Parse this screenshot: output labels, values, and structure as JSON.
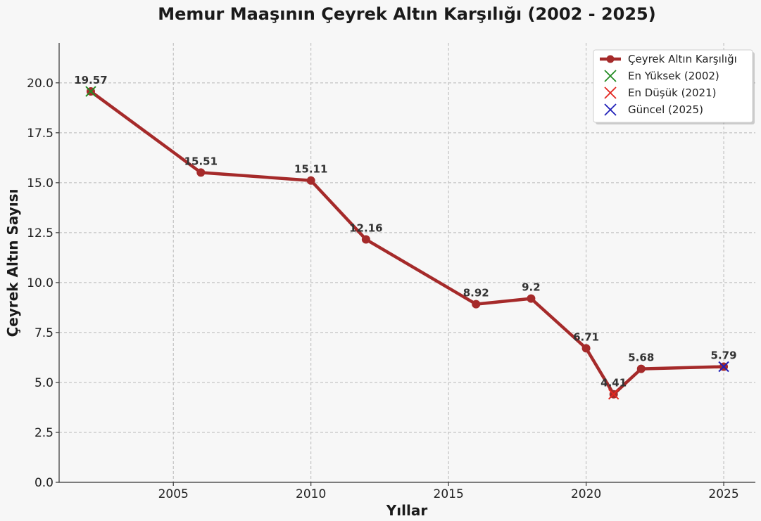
{
  "chart_data": {
    "type": "line",
    "title": "Memur Maaşının Çeyrek Altın Karşılığı (2002 - 2025)",
    "xlabel": "Yıllar",
    "ylabel": "Çeyrek Altın Sayısı",
    "xlim": [
      2000.85,
      2026.15
    ],
    "ylim": [
      0,
      22
    ],
    "xticks": [
      2005,
      2010,
      2015,
      2020,
      2025
    ],
    "yticks": [
      0.0,
      2.5,
      5.0,
      7.5,
      10.0,
      12.5,
      15.0,
      17.5,
      20.0
    ],
    "ytick_labels": [
      "0.0",
      "2.5",
      "5.0",
      "7.5",
      "10.0",
      "12.5",
      "15.0",
      "17.5",
      "20.0"
    ],
    "grid": true,
    "legend_position": "top-right",
    "series": [
      {
        "name": "Çeyrek Altın Karşılığı",
        "color": "#a52a2a",
        "x": [
          2002,
          2006,
          2010,
          2012,
          2016,
          2018,
          2020,
          2021,
          2022,
          2025
        ],
        "y": [
          19.57,
          15.51,
          15.11,
          12.16,
          8.92,
          9.2,
          6.71,
          4.41,
          5.68,
          5.79
        ],
        "labels": [
          "19.57",
          "15.51",
          "15.11",
          "12.16",
          "8.92",
          "9.2",
          "6.71",
          "4.41",
          "5.68",
          "5.79"
        ]
      }
    ],
    "markers": [
      {
        "name": "En Yüksek (2002)",
        "x": 2002,
        "y": 19.57,
        "color": "#228b22",
        "symbol": "x"
      },
      {
        "name": "En Düşük (2021)",
        "x": 2021,
        "y": 4.41,
        "color": "#e3261f",
        "symbol": "x"
      },
      {
        "name": "Güncel (2025)",
        "x": 2025,
        "y": 5.79,
        "color": "#1f1fb8",
        "symbol": "x"
      }
    ]
  }
}
